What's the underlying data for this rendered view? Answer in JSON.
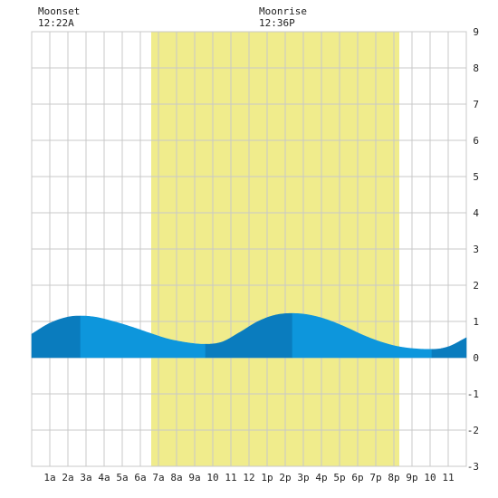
{
  "moon": {
    "moonset": {
      "label": "Moonset",
      "time": "12:22A"
    },
    "moonrise": {
      "label": "Moonrise",
      "time": "12:36P"
    }
  },
  "colors": {
    "plot_bg": "#ffffff",
    "grid": "#c8c8c8",
    "daylight": "#f0ec8c",
    "tide_light": "#0d96dc",
    "tide_dark": "#0a7cbe",
    "axis_text": "#222222"
  },
  "chart_data": {
    "type": "area",
    "title": "",
    "xlabel": "",
    "ylabel": "",
    "xlim": [
      0,
      24
    ],
    "ylim": [
      -3,
      9
    ],
    "x_tick_labels": [
      "1a",
      "2a",
      "3a",
      "4a",
      "5a",
      "6a",
      "7a",
      "8a",
      "9a",
      "10",
      "11",
      "12",
      "1p",
      "2p",
      "3p",
      "4p",
      "5p",
      "6p",
      "7p",
      "8p",
      "9p",
      "10",
      "11"
    ],
    "y_ticks": [
      -3,
      -2,
      -1,
      0,
      1,
      2,
      3,
      4,
      5,
      6,
      7,
      8,
      9
    ],
    "y_axis_side": "right",
    "grid": true,
    "daylight_hours": [
      6.6,
      20.3
    ],
    "moonset_hour": 0.37,
    "moonrise_hour": 12.6,
    "series": [
      {
        "hours": [
          0,
          1,
          2,
          2.7,
          3.5,
          4.5,
          5.5,
          6.5,
          7.5,
          8.5,
          9.5,
          10.5,
          11.5,
          12.5,
          13.5,
          14.4,
          15.3,
          16.3,
          17.3,
          18.3,
          19.3,
          20.3,
          21.3,
          22.1,
          23,
          24
        ],
        "values": [
          0.65,
          0.95,
          1.12,
          1.15,
          1.12,
          1.0,
          0.85,
          0.68,
          0.52,
          0.42,
          0.37,
          0.43,
          0.7,
          1.0,
          1.18,
          1.22,
          1.18,
          1.05,
          0.85,
          0.62,
          0.43,
          0.3,
          0.24,
          0.23,
          0.3,
          0.55
        ]
      }
    ],
    "shading_segments": [
      {
        "from": 0,
        "to": 2.7,
        "shade": "dark"
      },
      {
        "from": 2.7,
        "to": 9.6,
        "shade": "light"
      },
      {
        "from": 9.6,
        "to": 14.4,
        "shade": "dark"
      },
      {
        "from": 14.4,
        "to": 22.1,
        "shade": "light"
      },
      {
        "from": 22.1,
        "to": 24,
        "shade": "dark"
      }
    ]
  }
}
